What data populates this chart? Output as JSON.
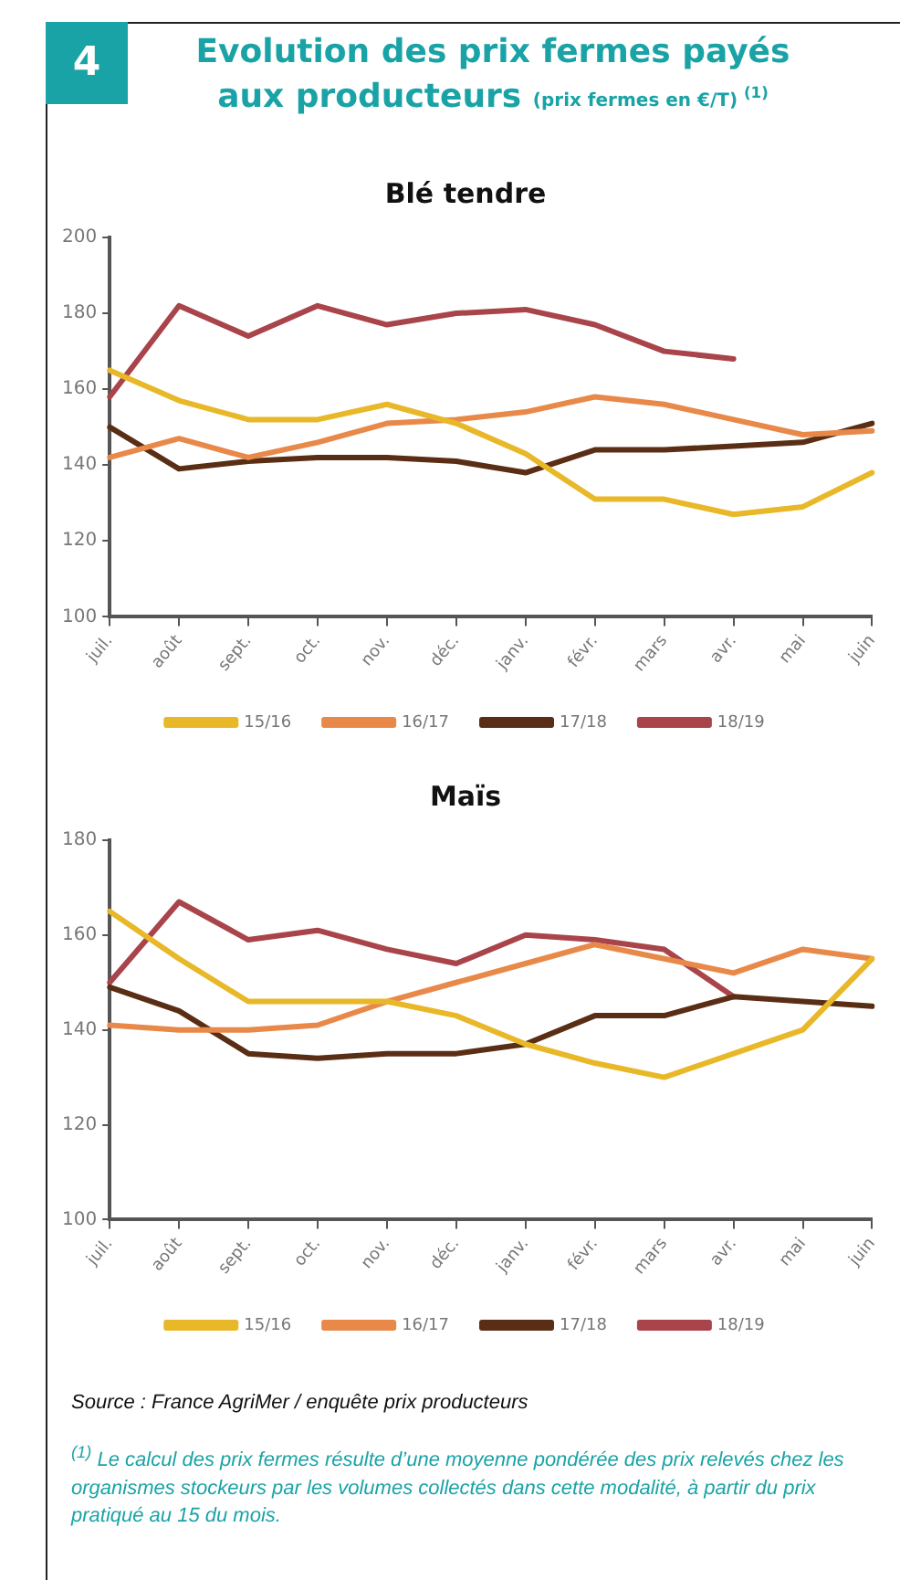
{
  "chart_data": [
    {
      "type": "other",
      "title": "Evolution des prix fermes payés",
      "subtitle": "aux producteurs (prix fermes en €/T) $^{(1)}$",
      "annotations": [
        "4"
      ]
    },
    {
      "type": "line",
      "title": "Blé tendre",
      "categories": [
        "juil.",
        "août",
        "sept.",
        "oct.",
        "nov.",
        "déc.",
        "janv.",
        "févr.",
        "mars",
        "avr.",
        "mai",
        "juin"
      ],
      "series": [
        {
          "name": "15/16",
          "color": "#e8b828",
          "values": [
            165,
            157,
            152,
            152,
            156,
            151,
            143,
            131,
            131,
            127,
            129,
            138
          ]
        },
        {
          "name": "16/17",
          "color": "#e8894a",
          "values": [
            142,
            147,
            142,
            146,
            151,
            152,
            154,
            158,
            156,
            152,
            148,
            149
          ]
        },
        {
          "name": "17/18",
          "color": "#5a2e14",
          "values": [
            150,
            139,
            141,
            142,
            142,
            141,
            138,
            144,
            144,
            145,
            146,
            151
          ]
        },
        {
          "name": "18/19",
          "color": "#a8444a",
          "values": [
            158,
            182,
            174,
            182,
            177,
            180,
            181,
            177,
            170,
            168,
            null,
            null
          ]
        }
      ],
      "ylim": [
        100,
        200
      ],
      "yticks": [
        100,
        120,
        140,
        160,
        180,
        200
      ],
      "legend": "bottom",
      "marker": "none",
      "line_style": "solid"
    },
    {
      "type": "line",
      "title": "Maïs",
      "categories": [
        "juil.",
        "août",
        "sept.",
        "oct.",
        "nov.",
        "déc.",
        "janv.",
        "févr.",
        "mars",
        "avr.",
        "mai",
        "juin"
      ],
      "series": [
        {
          "name": "15/16",
          "color": "#e8b828",
          "values": [
            165,
            155,
            146,
            146,
            146,
            143,
            137,
            133,
            130,
            135,
            140,
            155
          ]
        },
        {
          "name": "16/17",
          "color": "#e8894a",
          "values": [
            141,
            140,
            140,
            141,
            146,
            150,
            154,
            158,
            155,
            152,
            157,
            155
          ]
        },
        {
          "name": "17/18",
          "color": "#5a2e14",
          "values": [
            149,
            144,
            135,
            134,
            135,
            135,
            137,
            143,
            143,
            147,
            146,
            145
          ]
        },
        {
          "name": "18/19",
          "color": "#a8444a",
          "values": [
            150,
            167,
            159,
            161,
            157,
            154,
            160,
            159,
            157,
            147,
            null,
            null
          ]
        }
      ],
      "ylim": [
        100,
        180
      ],
      "yticks": [
        100,
        120,
        140,
        160,
        180
      ],
      "legend": "bottom",
      "marker": "none",
      "line_style": "solid"
    },
    {
      "type": "other",
      "annotations": [
        "Source : France AgriMer / enquête prix producteurs",
        "$^{(1)}$ Le calcul des prix fermes résulte d’une moyenne pondérée des prix relevés chez les organismes stockeurs par les volumes collectés dans cette modalité, à partir du prix pratiqué au 15 du mois."
      ]
    }
  ]
}
